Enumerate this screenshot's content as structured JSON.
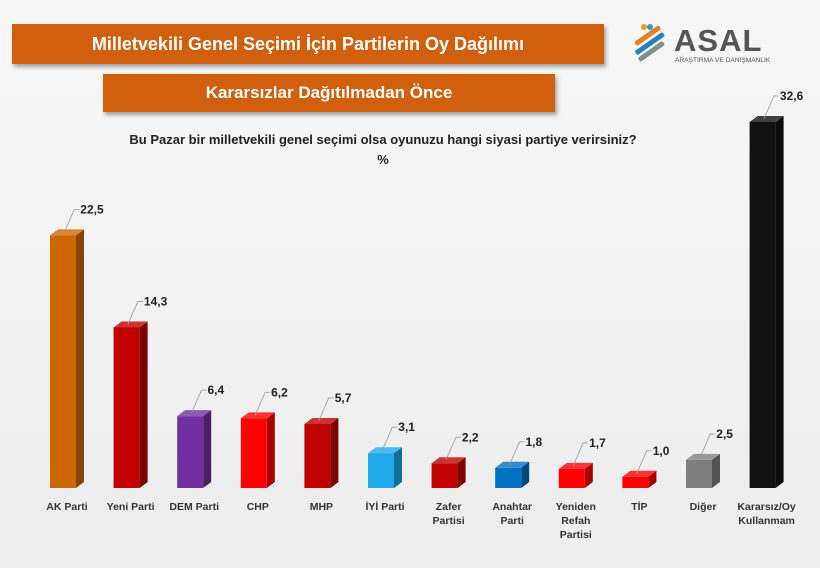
{
  "header": {
    "title": "Milletvekili Genel Seçimi İçin Partilerin Oy Dağılımı",
    "subtitle": "Kararsızlar Dağıtılmadan Önce",
    "question": "Bu Pazar bir milletvekili genel seçimi olsa oyunuzu hangi siyasi partiye verirsiniz?",
    "unit": "%"
  },
  "logo": {
    "name": "ASAL",
    "tagline": "ARAŞTIRMA VE DANIŞMANLIK"
  },
  "chart_data": {
    "type": "bar",
    "categories": [
      "AK Parti",
      "Yeni Parti",
      "DEM Parti",
      "CHP",
      "MHP",
      "İYİ Parti",
      "Zafer Partisi",
      "Anahtar Parti",
      "Yeniden Refah Partisi",
      "TİP",
      "Diğer",
      "Kararsız/Oy Kullanmam"
    ],
    "category_lines": [
      [
        "AK Parti"
      ],
      [
        "Yeni Parti"
      ],
      [
        "DEM Parti"
      ],
      [
        "CHP"
      ],
      [
        "MHP"
      ],
      [
        "İYİ Parti"
      ],
      [
        "Zafer",
        "Partisi"
      ],
      [
        "Anahtar",
        "Parti"
      ],
      [
        "Yeniden",
        "Refah",
        "Partisi"
      ],
      [
        "TİP"
      ],
      [
        "Diğer"
      ],
      [
        "Kararsız/Oy",
        "Kullanmam"
      ]
    ],
    "values": [
      22.5,
      14.3,
      6.4,
      6.2,
      5.7,
      3.1,
      2.2,
      1.8,
      1.7,
      1.0,
      2.5,
      32.6
    ],
    "value_labels": [
      "22,5",
      "14,3",
      "6,4",
      "6,2",
      "5,7",
      "3,1",
      "2,2",
      "1,8",
      "1,7",
      "1,0",
      "2,5",
      "32,6"
    ],
    "colors": [
      "#cc6600",
      "#c00000",
      "#7030a0",
      "#ff0000",
      "#c00000",
      "#1fa9e8",
      "#c00000",
      "#0070c0",
      "#ff0000",
      "#ff0000",
      "#7f7f7f",
      "#111111"
    ],
    "ylim": [
      0,
      32.6
    ],
    "grid": false,
    "legend": "none"
  }
}
